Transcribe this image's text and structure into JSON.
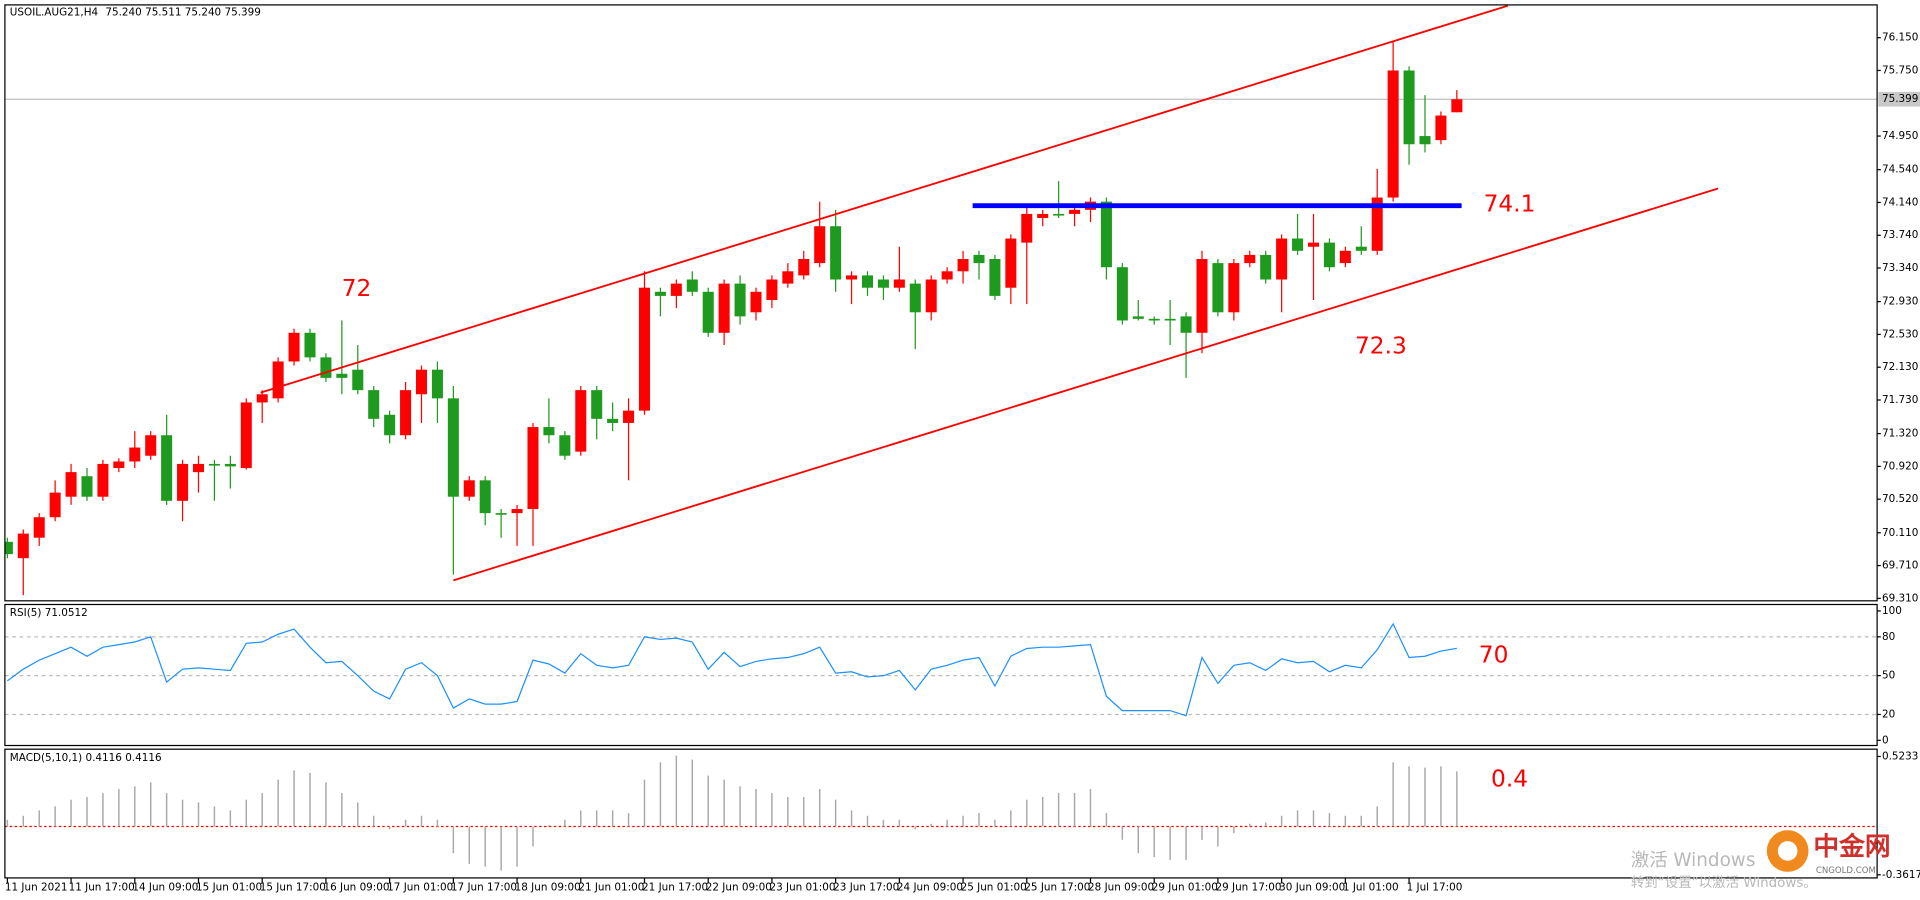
{
  "chart_data": [
    {
      "type": "candlestick",
      "title": "USOIL.AUG21,H4",
      "subtitle": "75.240 75.511 75.240 75.399",
      "categories": [
        "11 Jun 2021",
        null,
        null,
        null,
        "11 Jun 17:00",
        null,
        null,
        null,
        "14 Jun 09:00",
        null,
        null,
        null,
        "15 Jun 01:00",
        null,
        null,
        null,
        "15 Jun 17:00",
        null,
        null,
        null,
        "16 Jun 09:00",
        null,
        null,
        null,
        "17 Jun 01:00",
        null,
        null,
        null,
        "17 Jun 17:00",
        null,
        null,
        null,
        "18 Jun 09:00",
        null,
        null,
        null,
        "21 Jun 01:00",
        null,
        null,
        null,
        "21 Jun 17:00",
        null,
        null,
        null,
        "22 Jun 09:00",
        null,
        null,
        null,
        "23 Jun 01:00",
        null,
        null,
        null,
        "23 Jun 17:00",
        null,
        null,
        null,
        "24 Jun 09:00",
        null,
        null,
        null,
        "25 Jun 01:00",
        null,
        null,
        null,
        "25 Jun 17:00",
        null,
        null,
        null,
        "28 Jun 09:00",
        null,
        null,
        null,
        "29 Jun 01:00",
        null,
        null,
        null,
        "29 Jun 17:00",
        null,
        null,
        null,
        "30 Jun 09:00",
        null,
        null,
        null,
        "1 Jul 01:00",
        null,
        null,
        null,
        "1 Jul 17:00",
        null,
        null,
        null
      ],
      "open": [
        70.0,
        69.8,
        70.05,
        70.3,
        70.55,
        70.8,
        70.55,
        70.9,
        70.98,
        71.05,
        71.3,
        70.5,
        70.85,
        70.95,
        70.95,
        70.9,
        71.7,
        71.75,
        72.2,
        72.55,
        72.25,
        72.05,
        72.1,
        71.85,
        71.55,
        71.3,
        71.8,
        72.1,
        71.75,
        70.55,
        70.75,
        70.35,
        70.35,
        70.4,
        71.4,
        71.3,
        71.1,
        71.85,
        71.5,
        71.45,
        71.6,
        73.05,
        73.0,
        73.2,
        73.05,
        72.55,
        73.15,
        72.8,
        72.95,
        73.15,
        73.25,
        73.4,
        73.85,
        73.2,
        73.25,
        73.2,
        73.1,
        73.15,
        72.8,
        73.2,
        73.3,
        73.5,
        73.45,
        73.1,
        73.65,
        73.95,
        74.0,
        74.0,
        74.05,
        74.15,
        73.35,
        72.75,
        72.72,
        72.72,
        72.75,
        72.55,
        73.4,
        72.8,
        73.4,
        73.5,
        73.2,
        73.7,
        73.6,
        73.65,
        73.4,
        73.6,
        73.55,
        74.2,
        75.75,
        74.95,
        74.9,
        75.24
      ],
      "high": [
        70.05,
        70.15,
        70.35,
        70.75,
        70.95,
        70.9,
        71.0,
        71.02,
        71.35,
        71.35,
        71.55,
        71.0,
        71.05,
        71.0,
        71.05,
        71.75,
        71.85,
        72.25,
        72.6,
        72.6,
        72.3,
        72.7,
        72.4,
        71.9,
        71.6,
        71.95,
        72.15,
        72.2,
        71.9,
        70.8,
        70.8,
        70.4,
        70.45,
        71.45,
        71.75,
        71.35,
        71.9,
        71.9,
        71.7,
        71.75,
        73.3,
        73.1,
        73.2,
        73.3,
        73.1,
        73.2,
        73.25,
        73.1,
        73.25,
        73.4,
        73.55,
        74.15,
        74.05,
        73.3,
        73.3,
        73.25,
        73.6,
        73.2,
        73.25,
        73.35,
        73.55,
        73.55,
        73.5,
        73.75,
        74.1,
        74.05,
        74.4,
        74.1,
        74.2,
        74.2,
        73.4,
        72.95,
        72.75,
        72.95,
        72.8,
        73.55,
        73.45,
        73.45,
        73.55,
        73.55,
        73.75,
        74.0,
        74.0,
        73.7,
        73.6,
        73.85,
        74.55,
        76.1,
        75.8,
        75.45,
        75.25,
        75.511
      ],
      "low": [
        69.8,
        69.35,
        69.95,
        70.25,
        70.45,
        70.5,
        70.5,
        70.85,
        70.9,
        71.0,
        70.45,
        70.25,
        70.6,
        70.5,
        70.65,
        70.88,
        71.45,
        71.7,
        72.15,
        72.2,
        71.95,
        71.8,
        71.8,
        71.4,
        71.2,
        71.25,
        71.45,
        71.45,
        69.6,
        70.5,
        70.2,
        70.05,
        69.95,
        69.95,
        71.2,
        71.0,
        71.05,
        71.25,
        71.35,
        70.75,
        71.55,
        72.75,
        72.85,
        73.0,
        72.5,
        72.4,
        72.65,
        72.7,
        72.85,
        73.1,
        73.2,
        73.35,
        73.05,
        72.9,
        73.0,
        72.95,
        73.05,
        72.35,
        72.7,
        73.15,
        73.15,
        73.2,
        72.95,
        72.9,
        72.9,
        73.85,
        73.95,
        73.85,
        73.9,
        73.2,
        72.65,
        72.7,
        72.65,
        72.4,
        72.0,
        72.3,
        72.75,
        72.7,
        73.35,
        73.15,
        72.8,
        73.5,
        72.95,
        73.3,
        73.35,
        73.5,
        73.5,
        74.15,
        74.6,
        74.75,
        74.85,
        75.24
      ],
      "close": [
        69.85,
        70.1,
        70.3,
        70.6,
        70.85,
        70.55,
        70.95,
        70.98,
        71.15,
        71.3,
        70.5,
        70.95,
        70.95,
        70.93,
        70.92,
        71.7,
        71.8,
        72.2,
        72.55,
        72.25,
        72.0,
        72.0,
        71.85,
        71.5,
        71.3,
        71.85,
        72.1,
        71.75,
        70.55,
        70.75,
        70.35,
        70.33,
        70.4,
        71.4,
        71.3,
        71.05,
        71.85,
        71.5,
        71.45,
        71.6,
        73.1,
        73.0,
        73.15,
        73.05,
        72.55,
        73.15,
        72.75,
        73.05,
        73.2,
        73.3,
        73.45,
        73.85,
        73.2,
        73.25,
        73.1,
        73.1,
        73.2,
        72.8,
        73.2,
        73.3,
        73.45,
        73.4,
        73.0,
        73.7,
        74.0,
        74.0,
        73.98,
        74.05,
        74.15,
        73.35,
        72.7,
        72.72,
        72.7,
        72.7,
        72.55,
        73.45,
        72.8,
        73.4,
        73.5,
        73.2,
        73.7,
        73.55,
        73.65,
        73.35,
        73.55,
        73.55,
        74.2,
        75.75,
        74.85,
        74.85,
        75.2,
        75.399
      ],
      "up_color": "#ff0000",
      "down_color": "#1e9a1e",
      "ylim": [
        69.28,
        76.55
      ],
      "yticks": [
        {
          "value": 76.15,
          "label": "76.150"
        },
        {
          "value": 75.75,
          "label": "75.750"
        },
        {
          "value": 74.95,
          "label": "74.950"
        },
        {
          "value": 74.54,
          "label": "74.540"
        },
        {
          "value": 74.14,
          "label": "74.140"
        },
        {
          "value": 73.74,
          "label": "73.740"
        },
        {
          "value": 73.34,
          "label": "73.340"
        },
        {
          "value": 72.93,
          "label": "72.930"
        },
        {
          "value": 72.53,
          "label": "72.530"
        },
        {
          "value": 72.13,
          "label": "72.130"
        },
        {
          "value": 71.73,
          "label": "71.730"
        },
        {
          "value": 71.32,
          "label": "71.320"
        },
        {
          "value": 70.92,
          "label": "70.920"
        },
        {
          "value": 70.52,
          "label": "70.520"
        },
        {
          "value": 70.11,
          "label": "70.110"
        },
        {
          "value": 69.71,
          "label": "69.710"
        },
        {
          "value": 69.31,
          "label": "69.310"
        }
      ],
      "current_price": 75.399,
      "trendlines": [
        {
          "color": "#ff0000",
          "x": [
            15.9,
            94.2
          ],
          "y": [
            71.82,
            76.54
          ]
        },
        {
          "color": "#ff0000",
          "x": [
            28,
            107.4
          ],
          "y": [
            69.53,
            74.31
          ]
        },
        {
          "color": "#0000ff",
          "x": [
            60.6,
            91.3
          ],
          "y": [
            74.1,
            74.1
          ]
        }
      ],
      "annotations": [
        "72",
        "72.3",
        "74.1"
      ]
    },
    {
      "type": "line",
      "title": "RSI(5) 71.0512",
      "color": "#1e90ff",
      "values": [
        46,
        55,
        62,
        67,
        72,
        65,
        72,
        74,
        76,
        80,
        45,
        55,
        56,
        55,
        54,
        75,
        76,
        82,
        86,
        72,
        60,
        61,
        50,
        38,
        32,
        55,
        60,
        50,
        25,
        32,
        28,
        28,
        30,
        62,
        59,
        52,
        67,
        58,
        56,
        58,
        80,
        78,
        79,
        76,
        55,
        68,
        57,
        61,
        63,
        64,
        67,
        72,
        52,
        53,
        49,
        50,
        54,
        39,
        55,
        58,
        62,
        64,
        42,
        65,
        71,
        72,
        72,
        73,
        74,
        34,
        23,
        23,
        23,
        23,
        19,
        64,
        44,
        58,
        60,
        54,
        63,
        60,
        61,
        53,
        58,
        56,
        70,
        90,
        64,
        65,
        69,
        71.05
      ],
      "ylim": [
        -4,
        105
      ],
      "yticks": [
        0,
        20,
        50,
        80,
        100
      ],
      "levels": [
        20,
        50,
        80
      ],
      "annotations": [
        "70"
      ]
    },
    {
      "type": "bar",
      "title": "MACD(5,10,1) 0.4116 0.4116",
      "color": "#a8a8a8",
      "zero_color": "#ff0000",
      "values": [
        0.05,
        0.08,
        0.12,
        0.15,
        0.2,
        0.22,
        0.25,
        0.28,
        0.3,
        0.33,
        0.25,
        0.2,
        0.18,
        0.15,
        0.12,
        0.2,
        0.25,
        0.35,
        0.42,
        0.4,
        0.33,
        0.25,
        0.18,
        0.08,
        -0.02,
        0.05,
        0.08,
        0.05,
        -0.2,
        -0.28,
        -0.3,
        -0.33,
        -0.3,
        -0.15,
        0.01,
        0.05,
        0.12,
        0.12,
        0.12,
        0.1,
        0.35,
        0.48,
        0.53,
        0.5,
        0.38,
        0.35,
        0.3,
        0.28,
        0.25,
        0.22,
        0.22,
        0.28,
        0.2,
        0.12,
        0.08,
        0.05,
        0.05,
        -0.02,
        0.02,
        0.05,
        0.08,
        0.1,
        0.05,
        0.12,
        0.2,
        0.22,
        0.25,
        0.25,
        0.28,
        0.1,
        -0.1,
        -0.2,
        -0.23,
        -0.25,
        -0.25,
        -0.1,
        -0.15,
        -0.05,
        0.02,
        0.03,
        0.08,
        0.12,
        0.12,
        0.1,
        0.08,
        0.08,
        0.15,
        0.48,
        0.45,
        0.44,
        0.45,
        0.4116
      ],
      "ylim": [
        -0.385,
        0.578
      ],
      "yticks": [
        0.5233,
        {
          "value": -0.3617,
          "label": "-0.3617"
        }
      ],
      "annotations": [
        "0.4"
      ]
    }
  ],
  "watermark": {
    "line1": "激活 Windows",
    "line2": "转到“设置”以激活 Windows。"
  },
  "logo": {
    "name": "中金网",
    "site": "CNGOLD.COM"
  }
}
